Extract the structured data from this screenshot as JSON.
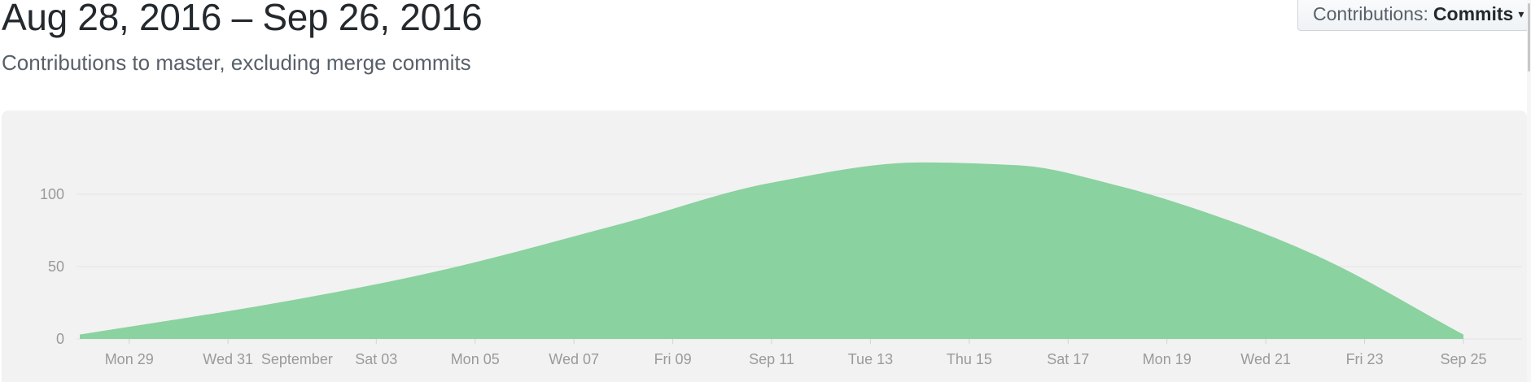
{
  "header": {
    "date_range": "Aug 28, 2016 – Sep 26, 2016",
    "subtitle": "Contributions to master, excluding merge commits"
  },
  "contributions_select": {
    "label": "Contributions:",
    "value": "Commits"
  },
  "chart_data": {
    "type": "area",
    "title": "",
    "xlabel": "",
    "ylabel": "",
    "ylim": [
      0,
      140
    ],
    "y_ticks": [
      0,
      50,
      100
    ],
    "grid": true,
    "x_start": "2016-08-28",
    "x_end": "2016-09-25",
    "x_tick_labels": [
      {
        "date": "2016-08-29",
        "label": "Mon 29"
      },
      {
        "date": "2016-08-31",
        "label": "Wed 31"
      },
      {
        "date": "2016-09-01",
        "label": "September"
      },
      {
        "date": "2016-09-03",
        "label": "Sat 03"
      },
      {
        "date": "2016-09-05",
        "label": "Mon 05"
      },
      {
        "date": "2016-09-07",
        "label": "Wed 07"
      },
      {
        "date": "2016-09-09",
        "label": "Fri 09"
      },
      {
        "date": "2016-09-11",
        "label": "Sep 11"
      },
      {
        "date": "2016-09-13",
        "label": "Tue 13"
      },
      {
        "date": "2016-09-15",
        "label": "Thu 15"
      },
      {
        "date": "2016-09-17",
        "label": "Sat 17"
      },
      {
        "date": "2016-09-19",
        "label": "Mon 19"
      },
      {
        "date": "2016-09-21",
        "label": "Wed 21"
      },
      {
        "date": "2016-09-23",
        "label": "Fri 23"
      },
      {
        "date": "2016-09-25",
        "label": "Sep 25"
      }
    ],
    "series": [
      {
        "color": "#8ad2a0",
        "points": [
          {
            "x": "2016-08-28",
            "y": 3
          },
          {
            "x": "2016-09-01",
            "y": 25
          },
          {
            "x": "2016-09-04",
            "y": 45
          },
          {
            "x": "2016-09-08",
            "y": 80
          },
          {
            "x": "2016-09-11",
            "y": 108
          },
          {
            "x": "2016-09-14",
            "y": 122
          },
          {
            "x": "2016-09-16",
            "y": 120
          },
          {
            "x": "2016-09-18",
            "y": 106
          },
          {
            "x": "2016-09-20",
            "y": 85
          },
          {
            "x": "2016-09-22",
            "y": 58
          },
          {
            "x": "2016-09-25",
            "y": 3
          }
        ]
      }
    ]
  }
}
